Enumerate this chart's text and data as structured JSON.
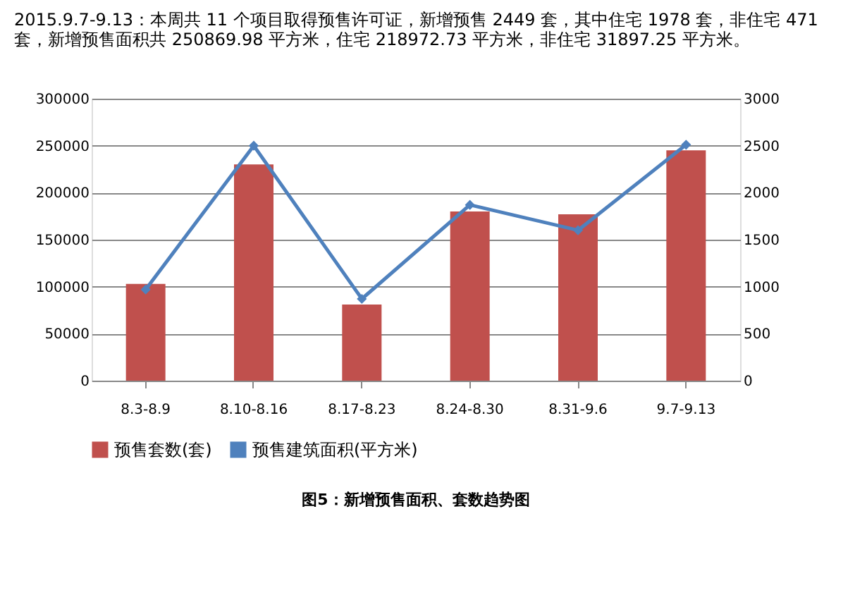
{
  "chart_data": {
    "type": "bar",
    "title": "2015.9.7-9.13：本周共 11 个项目取得预售许可证，新增预售 2449 套，其中住宅 1978 套，非住宅 471 套，新增预售面积共 250869.98 平方米，住宅 218972.73 平方米，非住宅 31897.25 平方米。",
    "categories": [
      "8.3-8.9",
      "8.10-8.16",
      "8.17-8.23",
      "8.24-8.30",
      "8.31-9.6",
      "9.7-9.13"
    ],
    "series": [
      {
        "name": "预售套数(套)",
        "axis": "y2",
        "color": "#c0504d",
        "values": [
          1030,
          2300,
          810,
          1800,
          1770,
          2450
        ]
      },
      {
        "name": "预售建筑面积(平方米)",
        "type": "line",
        "color": "#4f81bd",
        "marker": "diamond",
        "values": [
          97000,
          250000,
          87000,
          187000,
          160000,
          251000
        ]
      }
    ],
    "ylim": [
      0,
      300000
    ],
    "yticks": [
      0,
      50000,
      100000,
      150000,
      200000,
      250000,
      300000
    ],
    "y2lim": [
      0,
      3000
    ],
    "y2ticks": [
      0,
      500,
      1000,
      1500,
      2000,
      2500,
      3000
    ],
    "grid": "y",
    "legend": "bottom",
    "annotations": [
      "图5：新增预售面积、套数趋势图"
    ]
  }
}
